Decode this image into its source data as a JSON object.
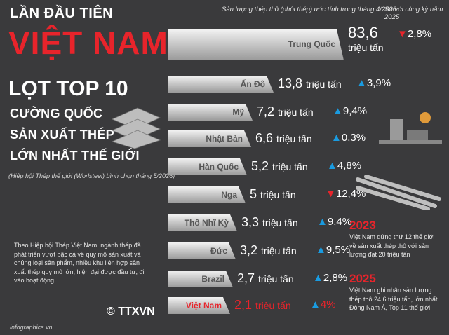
{
  "title": {
    "line1": "LẦN ĐẦU TIÊN",
    "line2": "VIỆT NAM",
    "line3": "LỌT TOP 10",
    "line4": "CƯỜNG QUỐC",
    "line5": "SẢN XUẤT THÉP",
    "line6": "LỚN NHẤT THẾ GIỚI",
    "note": "(Hiệp hội Thép thế giới (Worlsteel) bình chọn tháng 5/2026)"
  },
  "headers": {
    "volume": "Sản lượng thép thô (phôi thép) ước tính trong tháng 4/2026",
    "compare": "So với cùng kỳ năm 2025"
  },
  "countries": [
    {
      "name": "Trung Quốc",
      "value": "83,6",
      "unit": "triệu tấn",
      "change": "2,8%",
      "dir": "down"
    },
    {
      "name": "Ấn Độ",
      "value": "13,8",
      "unit": "triệu tấn",
      "change": "3,9%",
      "dir": "up"
    },
    {
      "name": "Mỹ",
      "value": "7,2",
      "unit": "triệu tấn",
      "change": "9,4%",
      "dir": "up"
    },
    {
      "name": "Nhật Bản",
      "value": "6,6",
      "unit": "triệu tấn",
      "change": "0,3%",
      "dir": "up"
    },
    {
      "name": "Hàn Quốc",
      "value": "5,2",
      "unit": "triệu tấn",
      "change": "4,8%",
      "dir": "up"
    },
    {
      "name": "Nga",
      "value": "5",
      "unit": "triệu tấn",
      "change": "12,4%",
      "dir": "down"
    },
    {
      "name": "Thổ Nhĩ Kỳ",
      "value": "3,3",
      "unit": "triệu tấn",
      "change": "9,4%",
      "dir": "up"
    },
    {
      "name": "Đức",
      "value": "3,2",
      "unit": "triệu tấn",
      "change": "9,5%",
      "dir": "up"
    },
    {
      "name": "Brazil",
      "value": "2,7",
      "unit": "triệu tấn",
      "change": "2,8%",
      "dir": "up"
    },
    {
      "name": "Việt Nam",
      "value": "2,1",
      "unit": "triệu tấn",
      "change": "4%",
      "dir": "up"
    }
  ],
  "paragraph": "Theo Hiệp hội Thép Việt Nam, ngành thép đã phát triển vượt bậc cả về quy mô sản xuất và chủng loại sản phẩm, nhiều khu liên hợp sản xuất thép quy mô lớn, hiện đại được đầu tư, đi vào hoạt động",
  "milestones": [
    {
      "year": "2023",
      "text": "Việt Nam đứng thứ 12 thế giới về sản xuất thép thô với sản lượng đạt 20 triệu tấn"
    },
    {
      "year": "2025",
      "text": "Việt Nam ghi nhận sản lượng thép thô 24,6 triệu tấn, lớn nhất Đông Nam Á, Top 11 thế giới"
    }
  ],
  "brand": "© TTXVN",
  "footer": "infographics.vn",
  "colors": {
    "accent": "#e8242b",
    "up": "#1a9be0",
    "bg": "#3a3a3c"
  }
}
